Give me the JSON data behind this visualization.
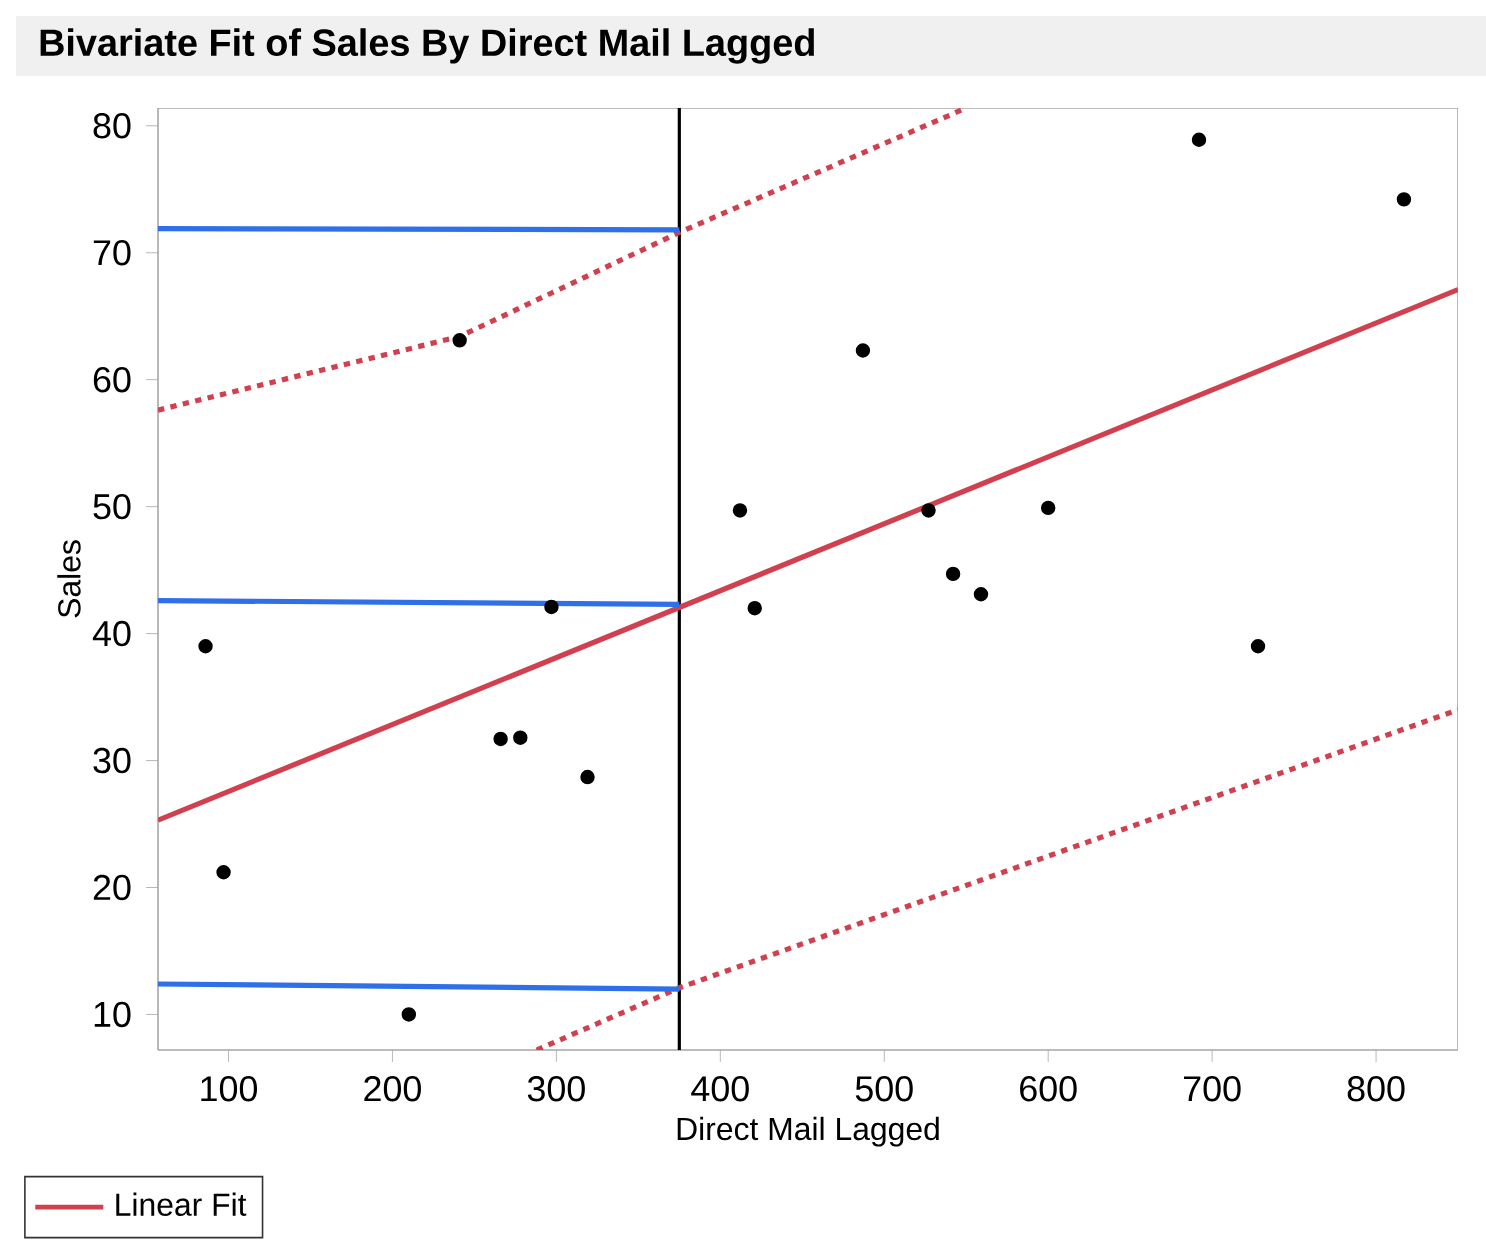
{
  "chart_data": {
    "type": "scatter",
    "title": "Bivariate Fit of Sales By Direct Mail Lagged",
    "xlabel": "Direct Mail Lagged",
    "ylabel": "Sales",
    "xlim": [
      57,
      850
    ],
    "ylim": [
      7.2,
      81.4
    ],
    "xticks": [
      100,
      200,
      300,
      400,
      500,
      600,
      700,
      800
    ],
    "yticks": [
      10,
      20,
      30,
      40,
      50,
      60,
      70,
      80
    ],
    "legend": "bottom left",
    "grid": false,
    "series": [
      {
        "marker": "circle",
        "color": "#000000",
        "x": [
          86,
          97,
          210,
          241,
          266,
          278,
          297,
          319,
          412,
          421,
          487,
          527,
          542,
          559,
          600,
          692,
          728,
          817
        ],
        "values": [
          39.0,
          21.2,
          10.0,
          63.1,
          31.7,
          31.8,
          42.1,
          28.7,
          49.7,
          42.0,
          62.3,
          49.7,
          44.7,
          43.1,
          49.9,
          78.9,
          39.0,
          74.2
        ]
      },
      {
        "type": "line",
        "name": "Linear Fit",
        "color": "#d0404e",
        "line_style": "solid",
        "x": [
          57,
          850
        ],
        "values": [
          25.3,
          67.1
        ]
      },
      {
        "type": "line",
        "color": "#d0404e",
        "line_style": "dotted",
        "x": [
          57,
          241,
          375,
          550
        ],
        "values": [
          57.6,
          63.4,
          71.6,
          81.4
        ]
      },
      {
        "type": "line",
        "color": "#d0404e",
        "line_style": "dotted",
        "x": [
          288,
          375,
          850
        ],
        "values": [
          7.2,
          12.1,
          34.0
        ]
      },
      {
        "type": "line",
        "color": "#2f6fe8",
        "line_style": "solid",
        "x": [
          57,
          375
        ],
        "values": [
          71.9,
          71.8
        ]
      },
      {
        "type": "line",
        "color": "#2f6fe8",
        "line_style": "solid",
        "x": [
          57,
          375
        ],
        "values": [
          42.6,
          42.3
        ]
      },
      {
        "type": "line",
        "color": "#2f6fe8",
        "line_style": "solid",
        "x": [
          57,
          375
        ],
        "values": [
          12.4,
          12.0
        ]
      }
    ],
    "ref_lines": [
      {
        "axis": "x",
        "value": 375,
        "color": "#000000"
      }
    ]
  }
}
